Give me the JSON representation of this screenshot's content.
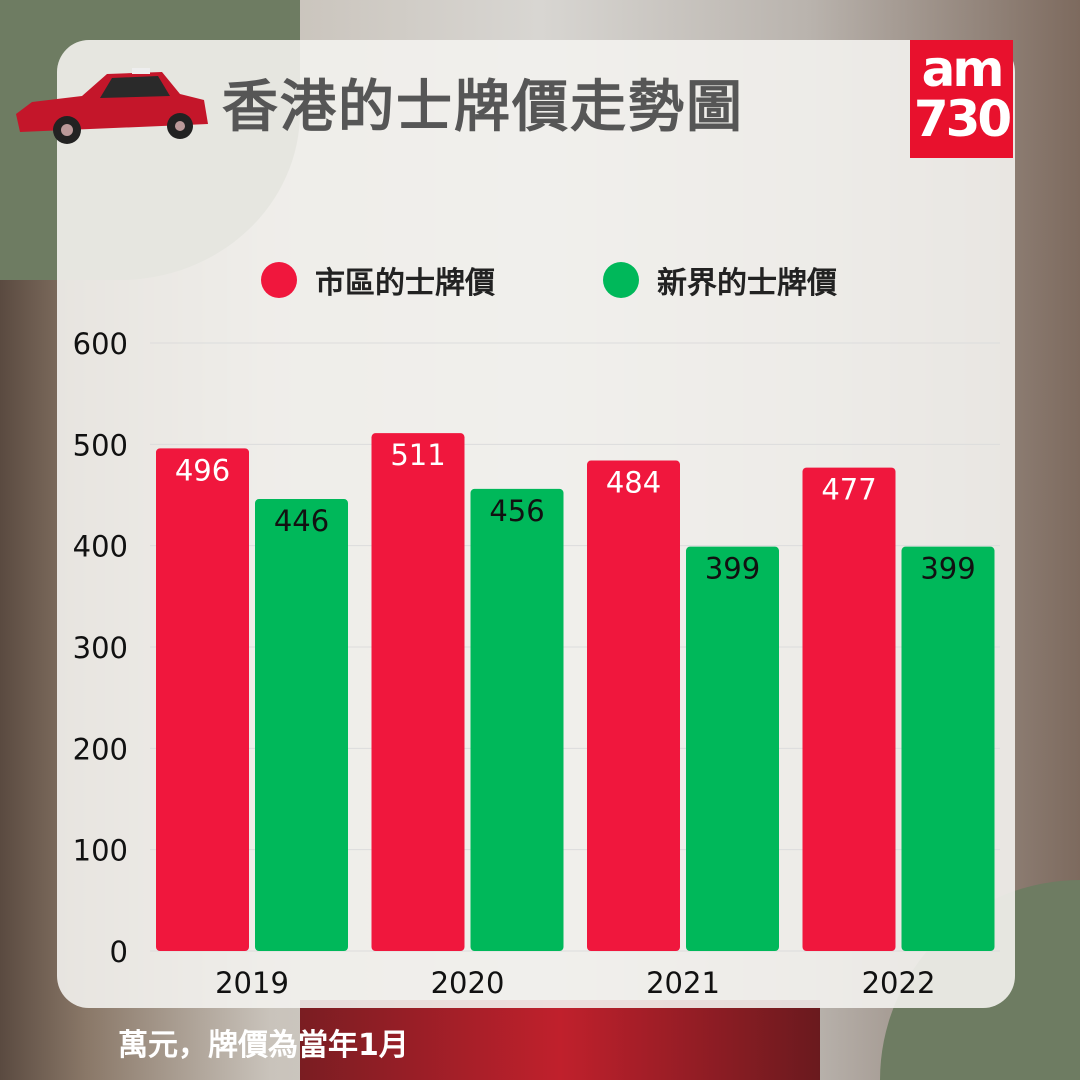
{
  "title": "香港的士牌價走勢圖",
  "logo": {
    "line1": "am",
    "line2": "730"
  },
  "note": "萬元，牌價為當年1月",
  "colors": {
    "urban": "#f0173d",
    "nt": "#00b85a",
    "panel": "#f3f2ee",
    "blob": "#6e7c62"
  },
  "chart_data": {
    "type": "bar",
    "categories": [
      "2019",
      "2020",
      "2021",
      "2022"
    ],
    "series": [
      {
        "name": "市區的士牌價",
        "values": [
          496,
          511,
          484,
          477
        ],
        "color": "#f0173d"
      },
      {
        "name": "新界的士牌價",
        "values": [
          446,
          456,
          399,
          399
        ],
        "color": "#00b85a"
      }
    ],
    "ylim": [
      0,
      600
    ],
    "yticks": [
      "0",
      "100",
      "200",
      "300",
      "400",
      "500",
      "600"
    ],
    "grid": true,
    "legend": "top",
    "ylabel": "",
    "xlabel": ""
  }
}
